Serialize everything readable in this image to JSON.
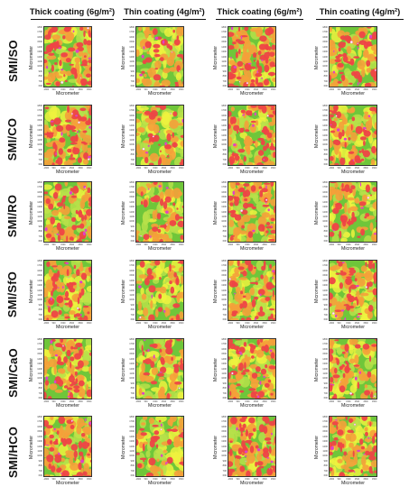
{
  "columns": [
    {
      "label": "Thick coating (6g/m²)"
    },
    {
      "label": "Thin coating (4g/m²)"
    },
    {
      "label": "Thick coating (6g/m²)"
    },
    {
      "label": "Thin coating (4g/m²)"
    }
  ],
  "rows": [
    {
      "label": "SMI/SO"
    },
    {
      "label": "SMI/CO"
    },
    {
      "label": "SMI/RO"
    },
    {
      "label": "SMI/SfO"
    },
    {
      "label": "SMI/CaO"
    },
    {
      "label": "SMI/HCO"
    }
  ],
  "axis": {
    "xlabel": "Micrometer",
    "ylabel": "Micrometer",
    "yticks": [
      "1800",
      "1700",
      "1600",
      "1500",
      "1400",
      "1300",
      "1200",
      "1100",
      "1000",
      "900",
      "800",
      "700",
      "600"
    ],
    "xticks": [
      "-1800",
      "500",
      "1500",
      "2500",
      "3500",
      "4500"
    ]
  },
  "colors": {
    "background": "#ffffff",
    "green": "#6fc63a",
    "light_green": "#b7e04a",
    "yellow": "#eef23e",
    "orange": "#f5a03a",
    "red": "#ee4446",
    "magenta": "#e040c8",
    "white_spot": "#ffffff"
  },
  "panel_redness": [
    [
      0.78,
      0.4,
      0.88,
      0.62
    ],
    [
      0.7,
      0.36,
      0.72,
      0.58
    ],
    [
      0.62,
      0.42,
      0.62,
      0.42
    ],
    [
      0.68,
      0.34,
      0.64,
      0.56
    ],
    [
      0.64,
      0.36,
      0.72,
      0.54
    ],
    [
      0.74,
      0.36,
      0.86,
      0.56
    ]
  ]
}
